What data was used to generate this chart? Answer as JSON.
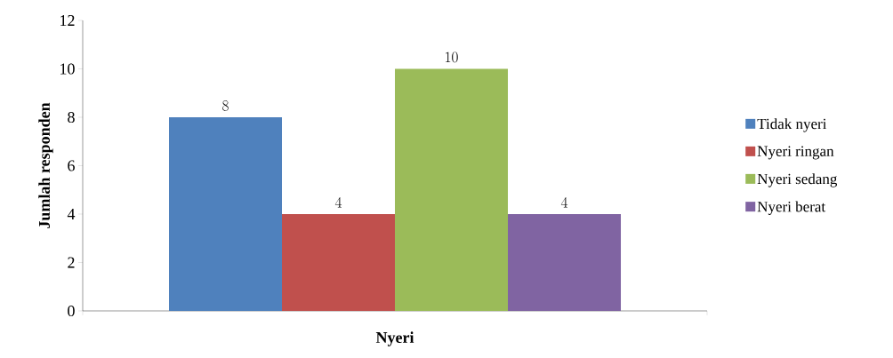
{
  "chart_data": {
    "type": "bar",
    "xlabel": "Nyeri",
    "ylabel": "Jumlah responden",
    "categories": [
      null
    ],
    "series": [
      {
        "name": "Tidak nyeri",
        "color": "#4f81bd",
        "values": [
          8
        ]
      },
      {
        "name": "Nyeri ringan",
        "color": "#c0504d",
        "values": [
          4
        ]
      },
      {
        "name": "Nyeri sedang",
        "color": "#9bbb59",
        "values": [
          10
        ]
      },
      {
        "name": "Nyeri berat",
        "color": "#8064a2",
        "values": [
          4
        ]
      }
    ],
    "ylim": [
      0,
      12
    ],
    "yticks": [
      0,
      2,
      4,
      6,
      8,
      10,
      12
    ],
    "data_labels": true,
    "legend": "right"
  }
}
